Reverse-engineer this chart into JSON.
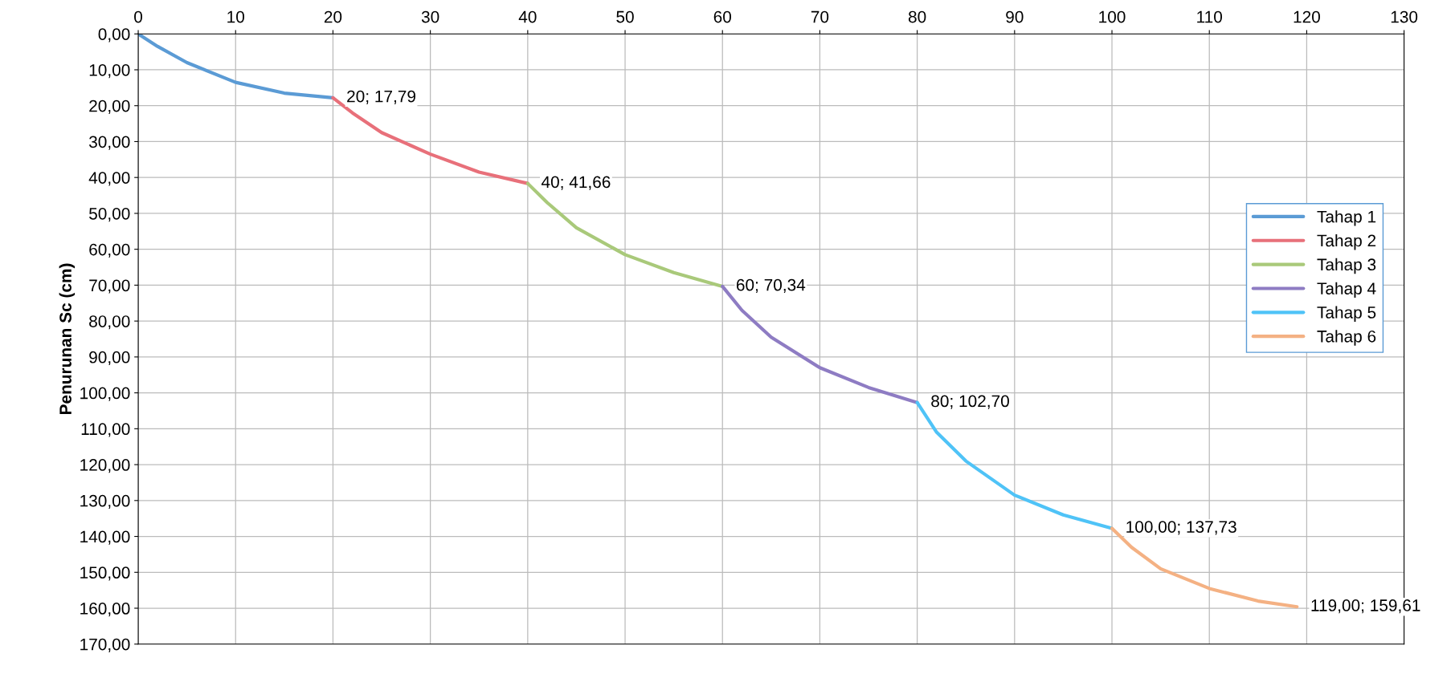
{
  "chart_data": {
    "type": "line",
    "ylabel": "Penurunan Sc (cm)",
    "series": [
      {
        "name": "Tahap 1",
        "color": "#5b9bd5",
        "x": [
          0,
          2,
          5,
          10,
          15,
          20
        ],
        "values": [
          0,
          3.5,
          8,
          13.5,
          16.5,
          17.79
        ]
      },
      {
        "name": "Tahap 2",
        "color": "#e8707a",
        "x": [
          20,
          22,
          25,
          30,
          35,
          40
        ],
        "values": [
          17.79,
          22,
          27.5,
          33.5,
          38.5,
          41.66
        ]
      },
      {
        "name": "Tahap 3",
        "color": "#a9c97a",
        "x": [
          40,
          42,
          45,
          50,
          55,
          60
        ],
        "values": [
          41.66,
          47,
          54,
          61.5,
          66.5,
          70.34
        ]
      },
      {
        "name": "Tahap 4",
        "color": "#8e7cc3",
        "x": [
          60,
          62,
          65,
          70,
          75,
          80
        ],
        "values": [
          70.34,
          77,
          84.5,
          93,
          98.5,
          102.7
        ]
      },
      {
        "name": "Tahap 5",
        "color": "#4fc3f7",
        "x": [
          80,
          82,
          85,
          90,
          95,
          100
        ],
        "values": [
          102.7,
          111,
          119,
          128.5,
          134,
          137.73
        ]
      },
      {
        "name": "Tahap 6",
        "color": "#f4b183",
        "x": [
          100,
          102,
          105,
          110,
          115,
          119
        ],
        "values": [
          137.73,
          143,
          149,
          154.5,
          158,
          159.61
        ]
      }
    ],
    "annotations": [
      {
        "text": "20; 17,79",
        "x": 20,
        "y": 17.79
      },
      {
        "text": "40; 41,66",
        "x": 40,
        "y": 41.66
      },
      {
        "text": "60; 70,34",
        "x": 60,
        "y": 70.34
      },
      {
        "text": "80; 102,70",
        "x": 80,
        "y": 102.7
      },
      {
        "text": "100,00; 137,73",
        "x": 100,
        "y": 137.73
      },
      {
        "text": "119,00; 159,61",
        "x": 119,
        "y": 159.61
      }
    ],
    "xlim": [
      0,
      130
    ],
    "xticks": [
      0,
      10,
      20,
      30,
      40,
      50,
      60,
      70,
      80,
      90,
      100,
      110,
      120,
      130
    ],
    "ylim": [
      170,
      0
    ],
    "yticks": [
      {
        "value": 0,
        "label": "0,00"
      },
      {
        "value": 10,
        "label": "10,00"
      },
      {
        "value": 20,
        "label": "20,00"
      },
      {
        "value": 30,
        "label": "30,00"
      },
      {
        "value": 40,
        "label": "40,00"
      },
      {
        "value": 50,
        "label": "50,00"
      },
      {
        "value": 60,
        "label": "60,00"
      },
      {
        "value": 70,
        "label": "70,00"
      },
      {
        "value": 80,
        "label": "80,00"
      },
      {
        "value": 90,
        "label": "90,00"
      },
      {
        "value": 100,
        "label": "100,00"
      },
      {
        "value": 110,
        "label": "110,00"
      },
      {
        "value": 120,
        "label": "120,00"
      },
      {
        "value": 130,
        "label": "130,00"
      },
      {
        "value": 140,
        "label": "140,00"
      },
      {
        "value": 150,
        "label": "150,00"
      },
      {
        "value": 160,
        "label": "160,00"
      },
      {
        "value": 170,
        "label": "170,00"
      }
    ],
    "grid": true,
    "legend": "right"
  }
}
